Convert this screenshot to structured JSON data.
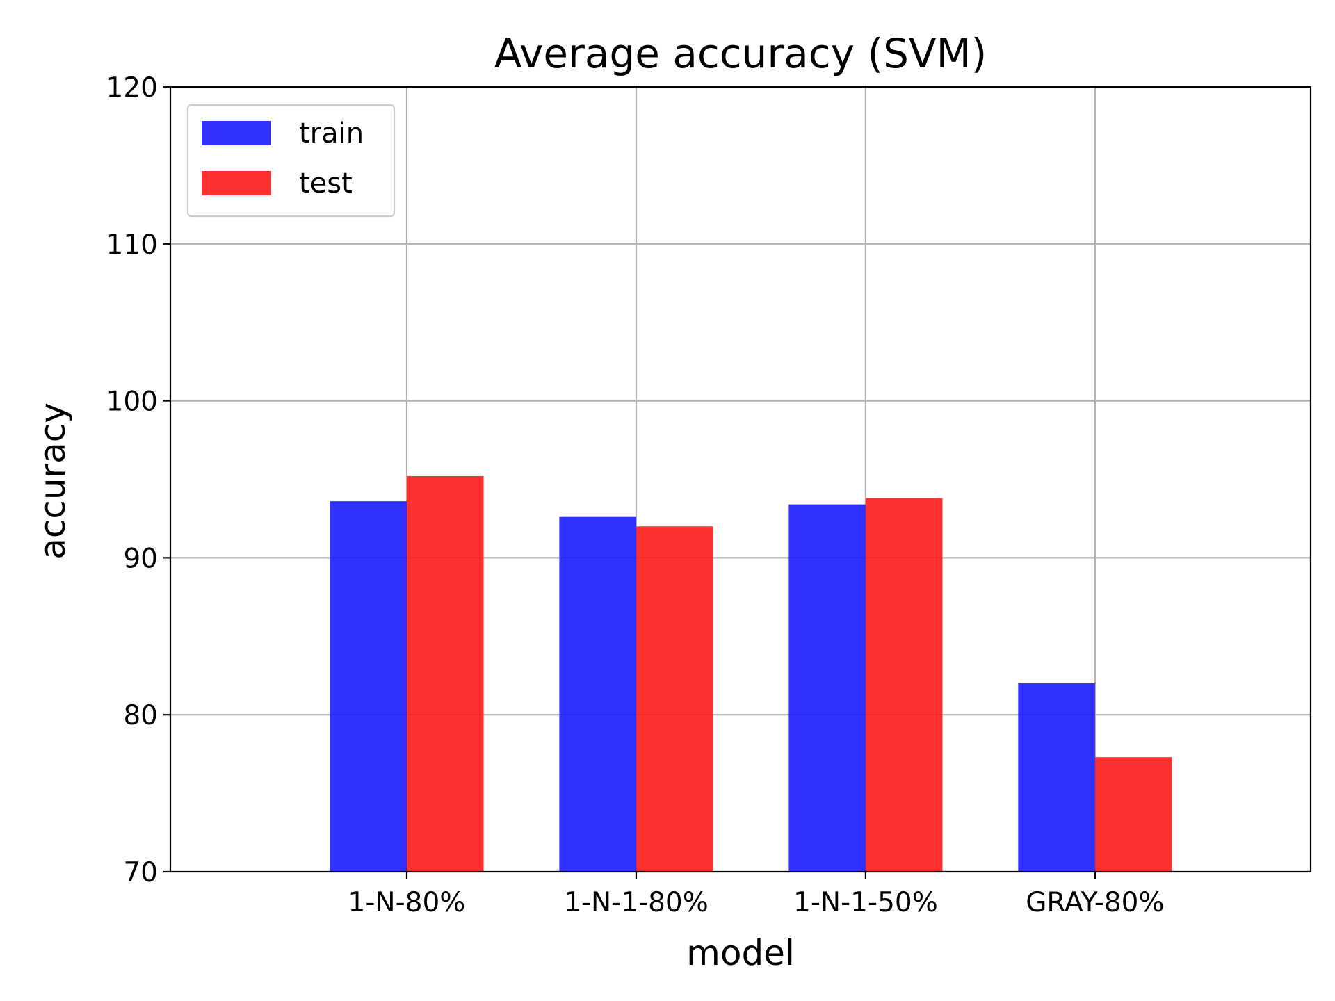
{
  "chart_data": {
    "type": "bar",
    "title": "Average accuracy (SVM)",
    "xlabel": "model",
    "ylabel": "accuracy",
    "categories": [
      "1-N-80%",
      "1-N-1-80%",
      "1-N-1-50%",
      "GRAY-80%"
    ],
    "series": [
      {
        "name": "train",
        "color": "#1a1aff",
        "values": [
          93.6,
          92.6,
          93.4,
          82.0
        ]
      },
      {
        "name": "test",
        "color": "#ff1a1a",
        "values": [
          95.2,
          92.0,
          93.8,
          77.3
        ]
      }
    ],
    "ylim": [
      70,
      120
    ],
    "yticks": [
      "70",
      "80",
      "90",
      "100",
      "110",
      "120"
    ],
    "grid": true,
    "legend_position": "top-left"
  }
}
